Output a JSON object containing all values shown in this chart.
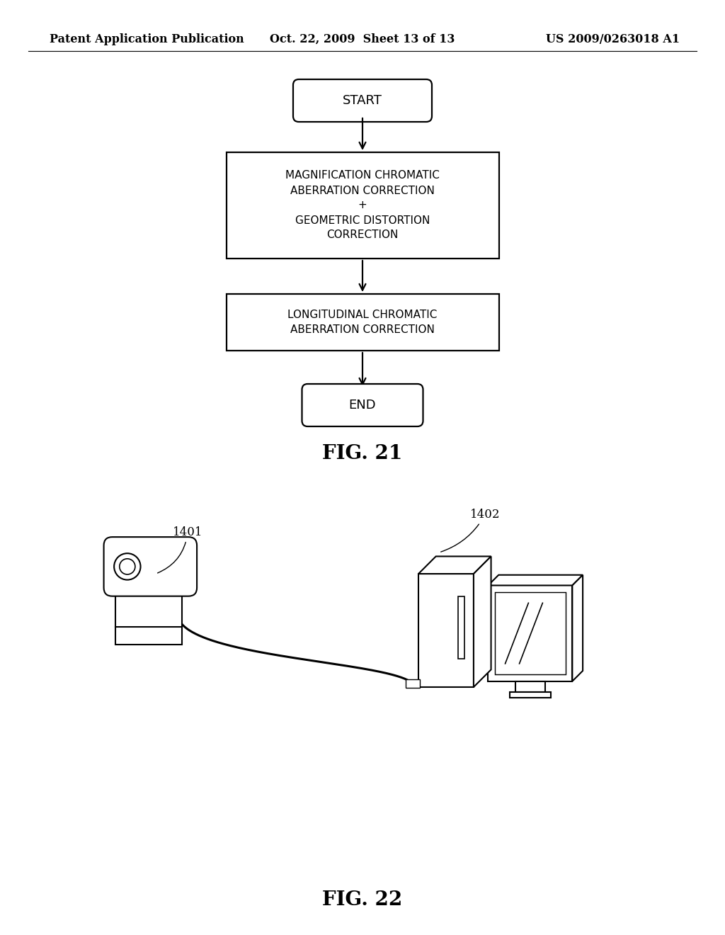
{
  "background_color": "#ffffff",
  "header": {
    "left": "Patent Application Publication",
    "center": "Oct. 22, 2009  Sheet 13 of 13",
    "right": "US 2009/0263018 A1",
    "fontsize": 11.5
  },
  "fig21": {
    "title": "FIG. 21",
    "title_fontsize": 20
  },
  "fig22": {
    "title": "FIG. 22",
    "title_fontsize": 20,
    "label1": "1401",
    "label2": "1402"
  }
}
